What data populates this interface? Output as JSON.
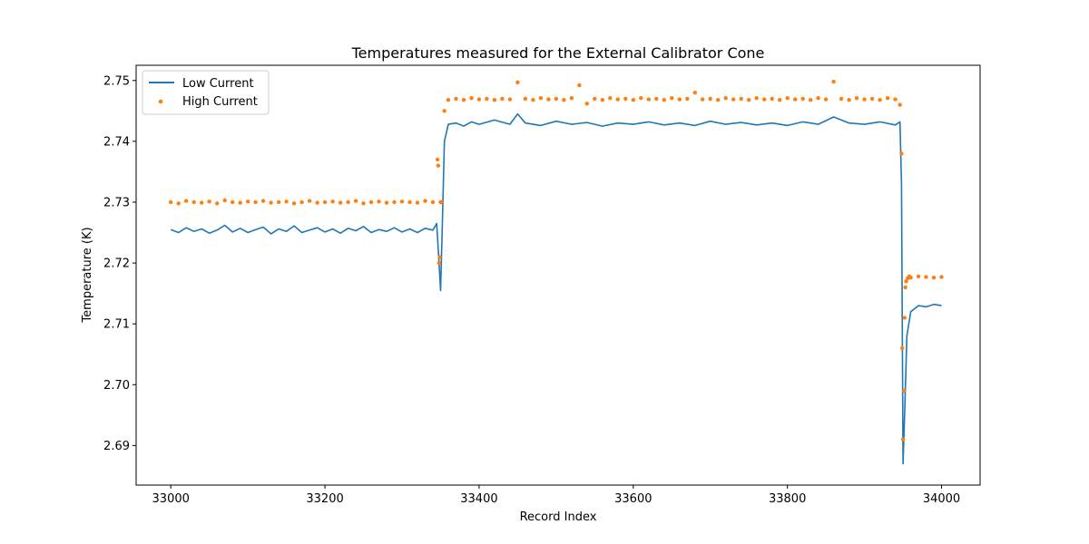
{
  "chart_data": {
    "type": "line+scatter",
    "title": "Temperatures measured for the External Calibrator Cone",
    "xlabel": "Record Index",
    "ylabel": "Temperature (K)",
    "xlim": [
      32955,
      34050
    ],
    "ylim": [
      2.6835,
      2.7525
    ],
    "xticks": [
      33000,
      33200,
      33400,
      33600,
      33800,
      34000
    ],
    "yticks": [
      2.69,
      2.7,
      2.71,
      2.72,
      2.73,
      2.74,
      2.75
    ],
    "xtick_labels": [
      "33000",
      "33200",
      "33400",
      "33600",
      "33800",
      "34000"
    ],
    "ytick_labels": [
      "2.69",
      "2.70",
      "2.71",
      "2.72",
      "2.73",
      "2.74",
      "2.75"
    ],
    "legend_position": "upper-left",
    "series": [
      {
        "name": "Low Current",
        "kind": "line",
        "color": "#1f77b4",
        "x": [
          33000,
          33010,
          33020,
          33030,
          33040,
          33050,
          33060,
          33070,
          33080,
          33090,
          33100,
          33110,
          33120,
          33130,
          33140,
          33150,
          33160,
          33170,
          33180,
          33190,
          33200,
          33210,
          33220,
          33230,
          33240,
          33250,
          33260,
          33270,
          33280,
          33290,
          33300,
          33310,
          33320,
          33330,
          33340,
          33345,
          33348,
          33350,
          33352,
          33355,
          33360,
          33370,
          33380,
          33390,
          33400,
          33420,
          33440,
          33450,
          33460,
          33480,
          33500,
          33520,
          33540,
          33560,
          33580,
          33600,
          33620,
          33640,
          33660,
          33680,
          33700,
          33720,
          33740,
          33760,
          33780,
          33800,
          33820,
          33840,
          33860,
          33880,
          33900,
          33920,
          33940,
          33946,
          33948,
          33950,
          33952,
          33955,
          33960,
          33970,
          33980,
          33990,
          34000
        ],
        "y": [
          2.7255,
          2.725,
          2.7258,
          2.7252,
          2.7256,
          2.7249,
          2.7254,
          2.7262,
          2.7251,
          2.7257,
          2.725,
          2.7255,
          2.7259,
          2.7248,
          2.7256,
          2.7252,
          2.7261,
          2.725,
          2.7254,
          2.7258,
          2.7251,
          2.7256,
          2.7249,
          2.7257,
          2.7253,
          2.726,
          2.725,
          2.7255,
          2.7252,
          2.7258,
          2.7251,
          2.7256,
          2.725,
          2.7257,
          2.7254,
          2.7265,
          2.72,
          2.7155,
          2.725,
          2.74,
          2.7428,
          2.743,
          2.7425,
          2.7432,
          2.7428,
          2.7435,
          2.7428,
          2.7445,
          2.743,
          2.7426,
          2.7433,
          2.7428,
          2.7431,
          2.7425,
          2.743,
          2.7428,
          2.7432,
          2.7427,
          2.743,
          2.7426,
          2.7433,
          2.7428,
          2.7431,
          2.7427,
          2.743,
          2.7426,
          2.7432,
          2.7428,
          2.744,
          2.743,
          2.7428,
          2.7432,
          2.7427,
          2.7432,
          2.733,
          2.687,
          2.695,
          2.708,
          2.712,
          2.713,
          2.7128,
          2.7132,
          2.713
        ]
      },
      {
        "name": "High Current",
        "kind": "scatter",
        "color": "#ff7f0e",
        "x": [
          33000,
          33010,
          33020,
          33030,
          33040,
          33050,
          33060,
          33070,
          33080,
          33090,
          33100,
          33110,
          33120,
          33130,
          33140,
          33150,
          33160,
          33170,
          33180,
          33190,
          33200,
          33210,
          33220,
          33230,
          33240,
          33250,
          33260,
          33270,
          33280,
          33290,
          33300,
          33310,
          33320,
          33330,
          33340,
          33346,
          33347,
          33348,
          33349,
          33350,
          33351,
          33355,
          33360,
          33370,
          33380,
          33390,
          33400,
          33410,
          33420,
          33430,
          33440,
          33450,
          33460,
          33470,
          33480,
          33490,
          33500,
          33510,
          33520,
          33530,
          33540,
          33550,
          33560,
          33570,
          33580,
          33590,
          33600,
          33610,
          33620,
          33630,
          33640,
          33650,
          33660,
          33670,
          33680,
          33690,
          33700,
          33710,
          33720,
          33730,
          33740,
          33750,
          33760,
          33770,
          33780,
          33790,
          33800,
          33810,
          33820,
          33830,
          33840,
          33850,
          33860,
          33870,
          33880,
          33890,
          33900,
          33910,
          33920,
          33930,
          33940,
          33946,
          33948,
          33949,
          33950,
          33951,
          33952,
          33953,
          33954,
          33956,
          33958,
          33960,
          33970,
          33980,
          33990,
          34000
        ],
        "y": [
          2.73,
          2.7298,
          2.7302,
          2.73,
          2.7299,
          2.7301,
          2.7298,
          2.7303,
          2.73,
          2.7299,
          2.7301,
          2.73,
          2.7302,
          2.7299,
          2.73,
          2.7301,
          2.7298,
          2.73,
          2.7302,
          2.7299,
          2.73,
          2.7301,
          2.7299,
          2.73,
          2.7302,
          2.7298,
          2.73,
          2.7301,
          2.7299,
          2.73,
          2.7301,
          2.73,
          2.7299,
          2.7302,
          2.73,
          2.737,
          2.736,
          2.72,
          2.721,
          2.73,
          2.73,
          2.745,
          2.7468,
          2.747,
          2.7468,
          2.7471,
          2.7469,
          2.747,
          2.7468,
          2.747,
          2.7469,
          2.7497,
          2.747,
          2.7468,
          2.7471,
          2.7469,
          2.747,
          2.7468,
          2.7471,
          2.7492,
          2.7462,
          2.747,
          2.7468,
          2.7471,
          2.7469,
          2.747,
          2.7468,
          2.7471,
          2.7469,
          2.747,
          2.7468,
          2.7471,
          2.7469,
          2.747,
          2.748,
          2.7469,
          2.747,
          2.7468,
          2.7471,
          2.7469,
          2.747,
          2.7468,
          2.7471,
          2.7469,
          2.747,
          2.7468,
          2.7471,
          2.7469,
          2.747,
          2.7468,
          2.7471,
          2.7469,
          2.7498,
          2.747,
          2.7468,
          2.7471,
          2.7469,
          2.747,
          2.7468,
          2.7471,
          2.7469,
          2.746,
          2.738,
          2.706,
          2.691,
          2.699,
          2.711,
          2.716,
          2.717,
          2.7175,
          2.7178,
          2.7176,
          2.7178,
          2.7177,
          2.7176,
          2.7177
        ]
      }
    ]
  }
}
